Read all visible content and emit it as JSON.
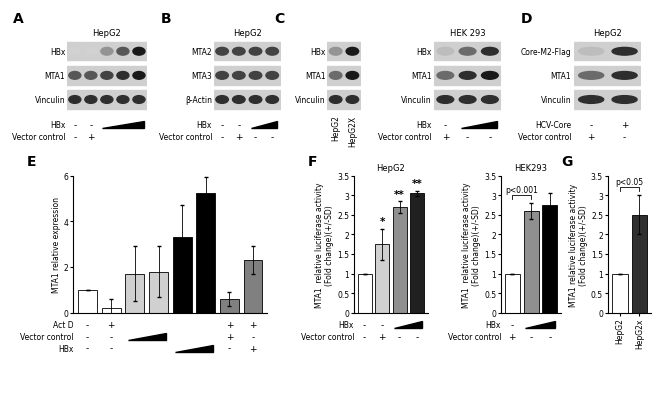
{
  "blots": [
    {
      "label": "A",
      "header": "HepG2",
      "rows": [
        {
          "name": "HBx",
          "bands": [
            0,
            0,
            0.3,
            0.6,
            0.9
          ]
        },
        {
          "name": "MTA1",
          "bands": [
            0.6,
            0.6,
            0.7,
            0.8,
            0.9
          ]
        },
        {
          "name": "Vinculin",
          "bands": [
            0.8,
            0.8,
            0.8,
            0.8,
            0.8
          ]
        }
      ],
      "conditions": [
        {
          "label": "HBx",
          "marks": [
            "-",
            "-",
            null,
            null,
            null
          ],
          "ramp": [
            2,
            4
          ]
        },
        {
          "label": "Vector control",
          "marks": [
            "-",
            "+",
            null,
            null,
            null
          ]
        }
      ]
    },
    {
      "label": "B",
      "header": "HepG2",
      "rows": [
        {
          "name": "MTA2",
          "bands": [
            0.7,
            0.7,
            0.7,
            0.7
          ]
        },
        {
          "name": "MTA3",
          "bands": [
            0.7,
            0.7,
            0.7,
            0.7
          ]
        },
        {
          "name": "β-Actin",
          "bands": [
            0.8,
            0.8,
            0.8,
            0.8
          ]
        }
      ],
      "conditions": [
        {
          "label": "HBx",
          "marks": [
            "-",
            "-",
            null,
            null
          ],
          "ramp": [
            2,
            3
          ]
        },
        {
          "label": "Vector control",
          "marks": [
            "-",
            "+",
            "-",
            "-"
          ]
        }
      ]
    },
    {
      "label": "C",
      "rows": [
        {
          "name": "HBx",
          "bands": [
            0.3,
            0.9
          ]
        },
        {
          "name": "MTA1",
          "bands": [
            0.5,
            0.9
          ]
        },
        {
          "name": "Vinculin",
          "bands": [
            0.8,
            0.8
          ]
        }
      ],
      "lanes": [
        "HepG2",
        "HepG2X"
      ]
    },
    {
      "header": "HEK 293",
      "rows": [
        {
          "name": "HBx",
          "bands": [
            0.1,
            0.5,
            0.8
          ]
        },
        {
          "name": "MTA1",
          "bands": [
            0.5,
            0.8,
            0.9
          ]
        },
        {
          "name": "Vinculin",
          "bands": [
            0.8,
            0.8,
            0.8
          ]
        }
      ],
      "conditions": [
        {
          "label": "HBx",
          "marks": [
            "-",
            null,
            null
          ],
          "ramp": [
            1,
            2
          ]
        },
        {
          "label": "Vector control",
          "marks": [
            "+",
            "-",
            "-"
          ]
        }
      ]
    },
    {
      "label": "D",
      "header": "HepG2",
      "rows": [
        {
          "name": "Core-M2-Flag",
          "bands": [
            0.1,
            0.8
          ]
        },
        {
          "name": "MTA1",
          "bands": [
            0.5,
            0.8
          ]
        },
        {
          "name": "Vinculin",
          "bands": [
            0.8,
            0.8
          ]
        }
      ],
      "conditions": [
        {
          "label": "HCV-Core",
          "marks": [
            "-",
            "+"
          ]
        },
        {
          "label": "Vector control",
          "marks": [
            "+",
            "-"
          ]
        }
      ]
    }
  ],
  "chart_data": [
    {
      "type": "bar",
      "title": "E",
      "y_label": "MTA1 relative expression",
      "categories": [
        null,
        null,
        null,
        null,
        null,
        null,
        null,
        null
      ],
      "values": [
        1,
        0.2,
        1.7,
        1.8,
        3.3,
        5.25,
        0.6,
        2.3
      ],
      "errors": [
        0,
        0.4,
        1.2,
        1.1,
        1.4,
        0.7,
        0.3,
        0.6
      ],
      "colors": [
        "#ffffff",
        "#ffffff",
        "#d0d0d0",
        "#d0d0d0",
        "#000000",
        "#000000",
        "#808080",
        "#808080"
      ],
      "ylim": [
        0,
        6
      ],
      "yticks": [
        0,
        2,
        4,
        6
      ],
      "tick_labels": "y",
      "conditions": [
        {
          "label": "Act D",
          "marks": [
            "-",
            "+",
            null,
            null,
            null,
            null,
            "+",
            "+"
          ]
        },
        {
          "label": "Vector control",
          "marks": [
            "-",
            "-",
            null,
            null,
            null,
            null,
            "+",
            "-"
          ],
          "ramp": [
            2,
            3
          ]
        },
        {
          "label": "HBx",
          "marks": [
            "-",
            "-",
            null,
            null,
            null,
            null,
            "-",
            "+"
          ],
          "ramp": [
            4,
            5
          ]
        }
      ]
    },
    {
      "type": "bar",
      "title": "F",
      "subtitle": "HepG2",
      "y_label": "MTA1  relative luciferase activity\n(Fold change)(+/-SD)",
      "categories": [
        null,
        null,
        null,
        null
      ],
      "values": [
        1,
        1.75,
        2.7,
        3.05
      ],
      "errors": [
        0,
        0.4,
        0.15,
        0.07
      ],
      "colors": [
        "#ffffff",
        "#d0d0d0",
        "#909090",
        "#202020"
      ],
      "ylim": [
        0,
        3.5
      ],
      "yticks": [
        0,
        0.5,
        1,
        1.5,
        2,
        2.5,
        3,
        3.5
      ],
      "tick_labels": "y",
      "annotations": [
        {
          "text": "*",
          "index": 1
        },
        {
          "text": "**",
          "index": 2
        },
        {
          "text": "**",
          "index": 3
        }
      ],
      "conditions": [
        {
          "label": "HBx",
          "marks": [
            "-",
            "-",
            null,
            null
          ],
          "ramp": [
            2,
            3
          ]
        },
        {
          "label": "Vector control",
          "marks": [
            "-",
            "+",
            "-",
            "-"
          ]
        }
      ]
    },
    {
      "type": "bar",
      "subtitle": "HEK293",
      "y_label": "MTA1  relative luciferase activity\n(Fold change)(+/-SD)",
      "categories": [
        null,
        null,
        null
      ],
      "values": [
        1,
        2.6,
        2.75
      ],
      "errors": [
        0,
        0.2,
        0.3
      ],
      "colors": [
        "#ffffff",
        "#909090",
        "#000000"
      ],
      "ylim": [
        0,
        3.5
      ],
      "yticks": [
        0,
        0.5,
        1,
        1.5,
        2,
        2.5,
        3,
        3.5
      ],
      "tick_labels": "y",
      "annotations": [
        {
          "text": "p<0.001",
          "from": 0,
          "to": 1
        }
      ],
      "conditions": [
        {
          "label": "HBx",
          "marks": [
            "-",
            null,
            null
          ],
          "ramp": [
            1,
            2
          ]
        },
        {
          "label": "Vector control",
          "marks": [
            "+",
            "-",
            "-"
          ]
        }
      ]
    },
    {
      "type": "bar",
      "title": "G",
      "y_label": "MTA1 relative luciferase activity\n(Fold change)(+/-SD)",
      "categories": [
        "HepG2",
        "HepG2x"
      ],
      "values": [
        1,
        2.5
      ],
      "errors": [
        0,
        0.5
      ],
      "colors": [
        "#ffffff",
        "#303030"
      ],
      "ylim": [
        0,
        3.5
      ],
      "yticks": [
        0,
        0.5,
        1,
        1.5,
        2,
        2.5,
        3,
        3.5
      ],
      "annotations": [
        {
          "text": "p<0.05",
          "from": 0,
          "to": 1
        }
      ]
    }
  ]
}
